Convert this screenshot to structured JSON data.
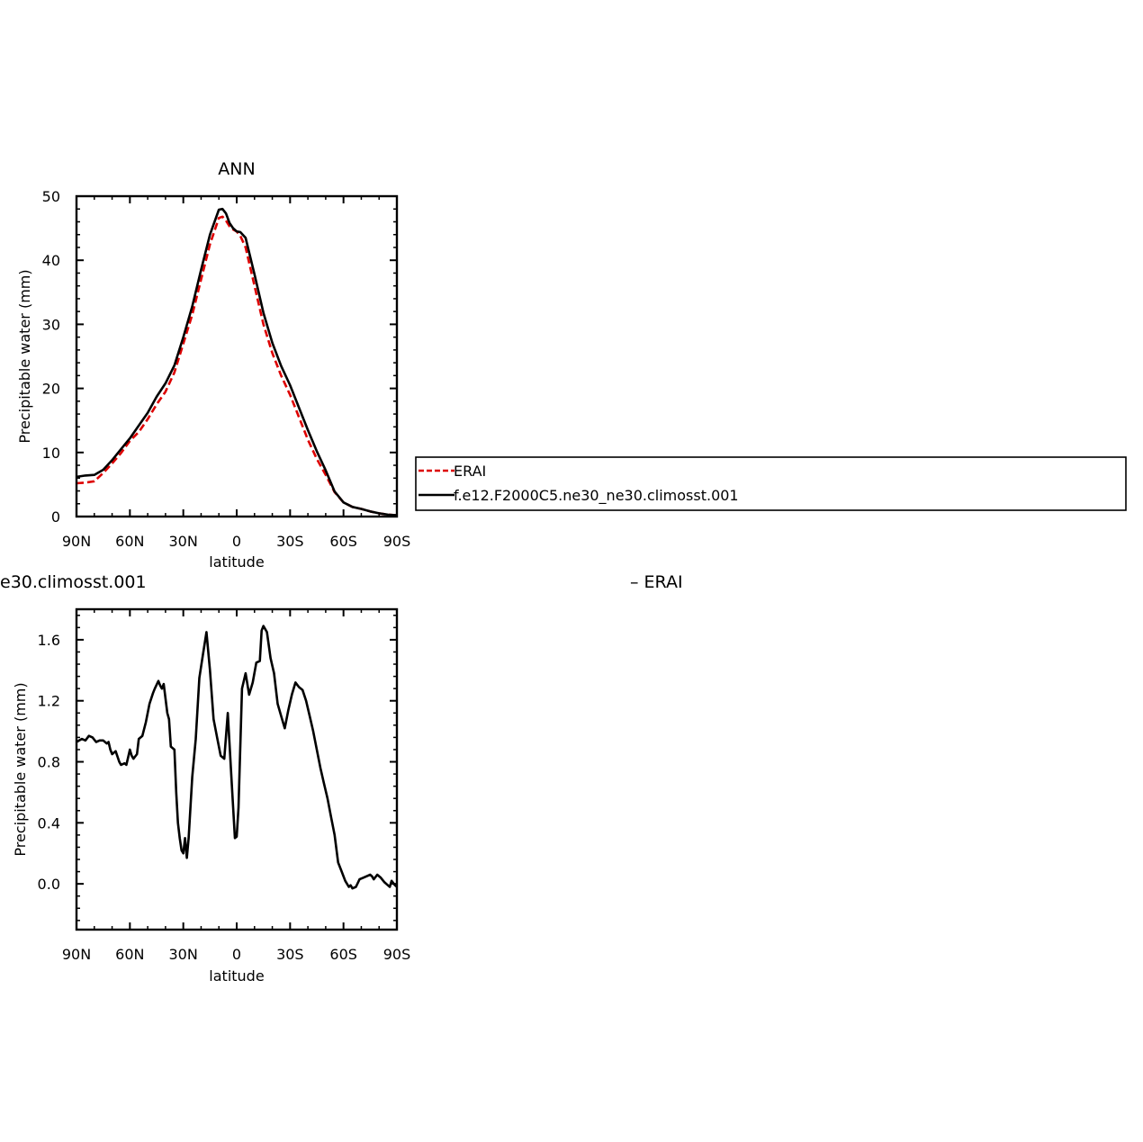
{
  "chart_data": [
    {
      "type": "line",
      "title": "ANN",
      "xlabel": "latitude",
      "ylabel": "Precipitable water (mm)",
      "xlim": [
        90,
        -90
      ],
      "ylim": [
        0,
        50
      ],
      "x_ticks": [
        90,
        60,
        30,
        0,
        -30,
        -60,
        -90
      ],
      "x_tick_labels": [
        "90N",
        "60N",
        "30N",
        "0",
        "30S",
        "60S",
        "90S"
      ],
      "y_ticks": [
        0,
        10,
        20,
        30,
        40,
        50
      ],
      "y_tick_labels": [
        "0",
        "10",
        "20",
        "30",
        "40",
        "50"
      ],
      "grid": false,
      "legend": {
        "placement": "right",
        "entries": [
          "ERAI",
          "f.e12.F2000C5.ne30_ne30.climosst.001"
        ]
      },
      "series": [
        {
          "name": "ERAI",
          "color": "#dd0000",
          "dash": true,
          "x": [
            90,
            85,
            80,
            75,
            70,
            65,
            60,
            55,
            50,
            45,
            40,
            35,
            30,
            25,
            20,
            15,
            10,
            8,
            6,
            4,
            2,
            0,
            -2,
            -5,
            -10,
            -15,
            -20,
            -25,
            -30,
            -35,
            -40,
            -45,
            -50,
            -55,
            -60,
            -65,
            -70,
            -75,
            -80,
            -85,
            -90
          ],
          "y": [
            5.2,
            5.3,
            5.5,
            6.8,
            8.3,
            9.9,
            11.8,
            13.2,
            15.2,
            17.5,
            19.5,
            22.5,
            27,
            31.5,
            37,
            42.5,
            46.6,
            46.8,
            46.2,
            45.3,
            44.8,
            44.5,
            43.8,
            42,
            36,
            30,
            25.5,
            22,
            19,
            15.5,
            12,
            9,
            6.5,
            3.8,
            2.2,
            1.5,
            1.2,
            0.8,
            0.5,
            0.3,
            0.2
          ]
        },
        {
          "name": "f.e12.F2000C5.ne30_ne30.climosst.001",
          "color": "#000000",
          "dash": false,
          "x": [
            90,
            85,
            80,
            75,
            70,
            65,
            60,
            55,
            50,
            45,
            40,
            35,
            30,
            25,
            20,
            15,
            10,
            8,
            6,
            4,
            2,
            0,
            -2,
            -5,
            -10,
            -15,
            -20,
            -25,
            -30,
            -35,
            -40,
            -45,
            -50,
            -55,
            -60,
            -65,
            -70,
            -75,
            -80,
            -85,
            -90
          ],
          "y": [
            6.2,
            6.4,
            6.5,
            7.3,
            8.8,
            10.5,
            12.2,
            14.2,
            16.2,
            18.7,
            20.8,
            23.6,
            28,
            32.8,
            38.5,
            44,
            47.9,
            48,
            47.3,
            45.8,
            45,
            44.5,
            44.4,
            43.5,
            37.8,
            31.8,
            27.1,
            23.5,
            20.5,
            17,
            13.5,
            10.2,
            7.2,
            3.9,
            2.2,
            1.5,
            1.2,
            0.8,
            0.5,
            0.3,
            0.2
          ]
        }
      ]
    },
    {
      "type": "line",
      "title": "e30.climosst.001",
      "title_right": "ERAI",
      "xlabel": "latitude",
      "ylabel": "Precipitable water (mm)",
      "xlim": [
        90,
        -90
      ],
      "ylim": [
        -0.3,
        1.8
      ],
      "x_ticks": [
        90,
        60,
        30,
        0,
        -30,
        -60,
        -90
      ],
      "x_tick_labels": [
        "90N",
        "60N",
        "30N",
        "0",
        "30S",
        "60S",
        "90S"
      ],
      "y_ticks": [
        0,
        0.4,
        0.8,
        1.2,
        1.6
      ],
      "y_tick_labels": [
        "0.0",
        "0.4",
        "0.8",
        "1.2",
        "1.6"
      ],
      "grid": false,
      "series": [
        {
          "color": "#000000",
          "x": [
            90,
            87,
            85,
            83,
            81,
            79,
            77,
            75,
            73,
            72,
            71,
            70,
            68,
            66,
            65,
            63,
            62,
            61,
            60,
            59,
            58,
            56,
            55,
            53,
            51,
            49,
            47,
            46,
            44,
            43,
            42,
            41,
            39,
            38,
            37,
            35,
            34,
            33,
            32,
            31,
            30,
            29,
            28,
            27,
            25,
            23,
            21,
            19,
            17,
            15,
            13,
            11,
            9,
            7,
            5,
            3,
            1,
            0,
            -1,
            -3,
            -5,
            -7,
            -9,
            -11,
            -13,
            -14,
            -15,
            -17,
            -19,
            -21,
            -23,
            -25,
            -27,
            -29,
            -31,
            -33,
            -35,
            -37,
            -39,
            -41,
            -43,
            -45,
            -47,
            -49,
            -51,
            -53,
            -55,
            -57,
            -59,
            -61,
            -63,
            -64,
            -65,
            -67,
            -69,
            -71,
            -73,
            -75,
            -76,
            -77,
            -79,
            -81,
            -83,
            -85,
            -86,
            -87,
            -89,
            -90
          ],
          "y": [
            0.93,
            0.95,
            0.94,
            0.97,
            0.96,
            0.93,
            0.94,
            0.94,
            0.92,
            0.93,
            0.88,
            0.85,
            0.87,
            0.8,
            0.78,
            0.79,
            0.78,
            0.83,
            0.88,
            0.84,
            0.82,
            0.85,
            0.95,
            0.97,
            1.06,
            1.18,
            1.25,
            1.28,
            1.33,
            1.3,
            1.28,
            1.31,
            1.12,
            1.08,
            0.9,
            0.88,
            0.6,
            0.4,
            0.3,
            0.22,
            0.2,
            0.3,
            0.17,
            0.3,
            0.7,
            0.95,
            1.35,
            1.5,
            1.65,
            1.4,
            1.08,
            0.96,
            0.84,
            0.82,
            1.12,
            0.7,
            0.3,
            0.31,
            0.5,
            1.28,
            1.38,
            1.24,
            1.32,
            1.45,
            1.46,
            1.66,
            1.69,
            1.65,
            1.48,
            1.38,
            1.18,
            1.1,
            1.02,
            1.14,
            1.24,
            1.32,
            1.29,
            1.27,
            1.2,
            1.1,
            1.0,
            0.88,
            0.76,
            0.66,
            0.56,
            0.44,
            0.32,
            0.14,
            0.08,
            0.02,
            -0.02,
            -0.01,
            -0.03,
            -0.02,
            0.03,
            0.04,
            0.05,
            0.06,
            0.05,
            0.03,
            0.06,
            0.04,
            0.01,
            -0.01,
            -0.02,
            0.02,
            -0.01,
            -0.02
          ]
        }
      ]
    }
  ]
}
